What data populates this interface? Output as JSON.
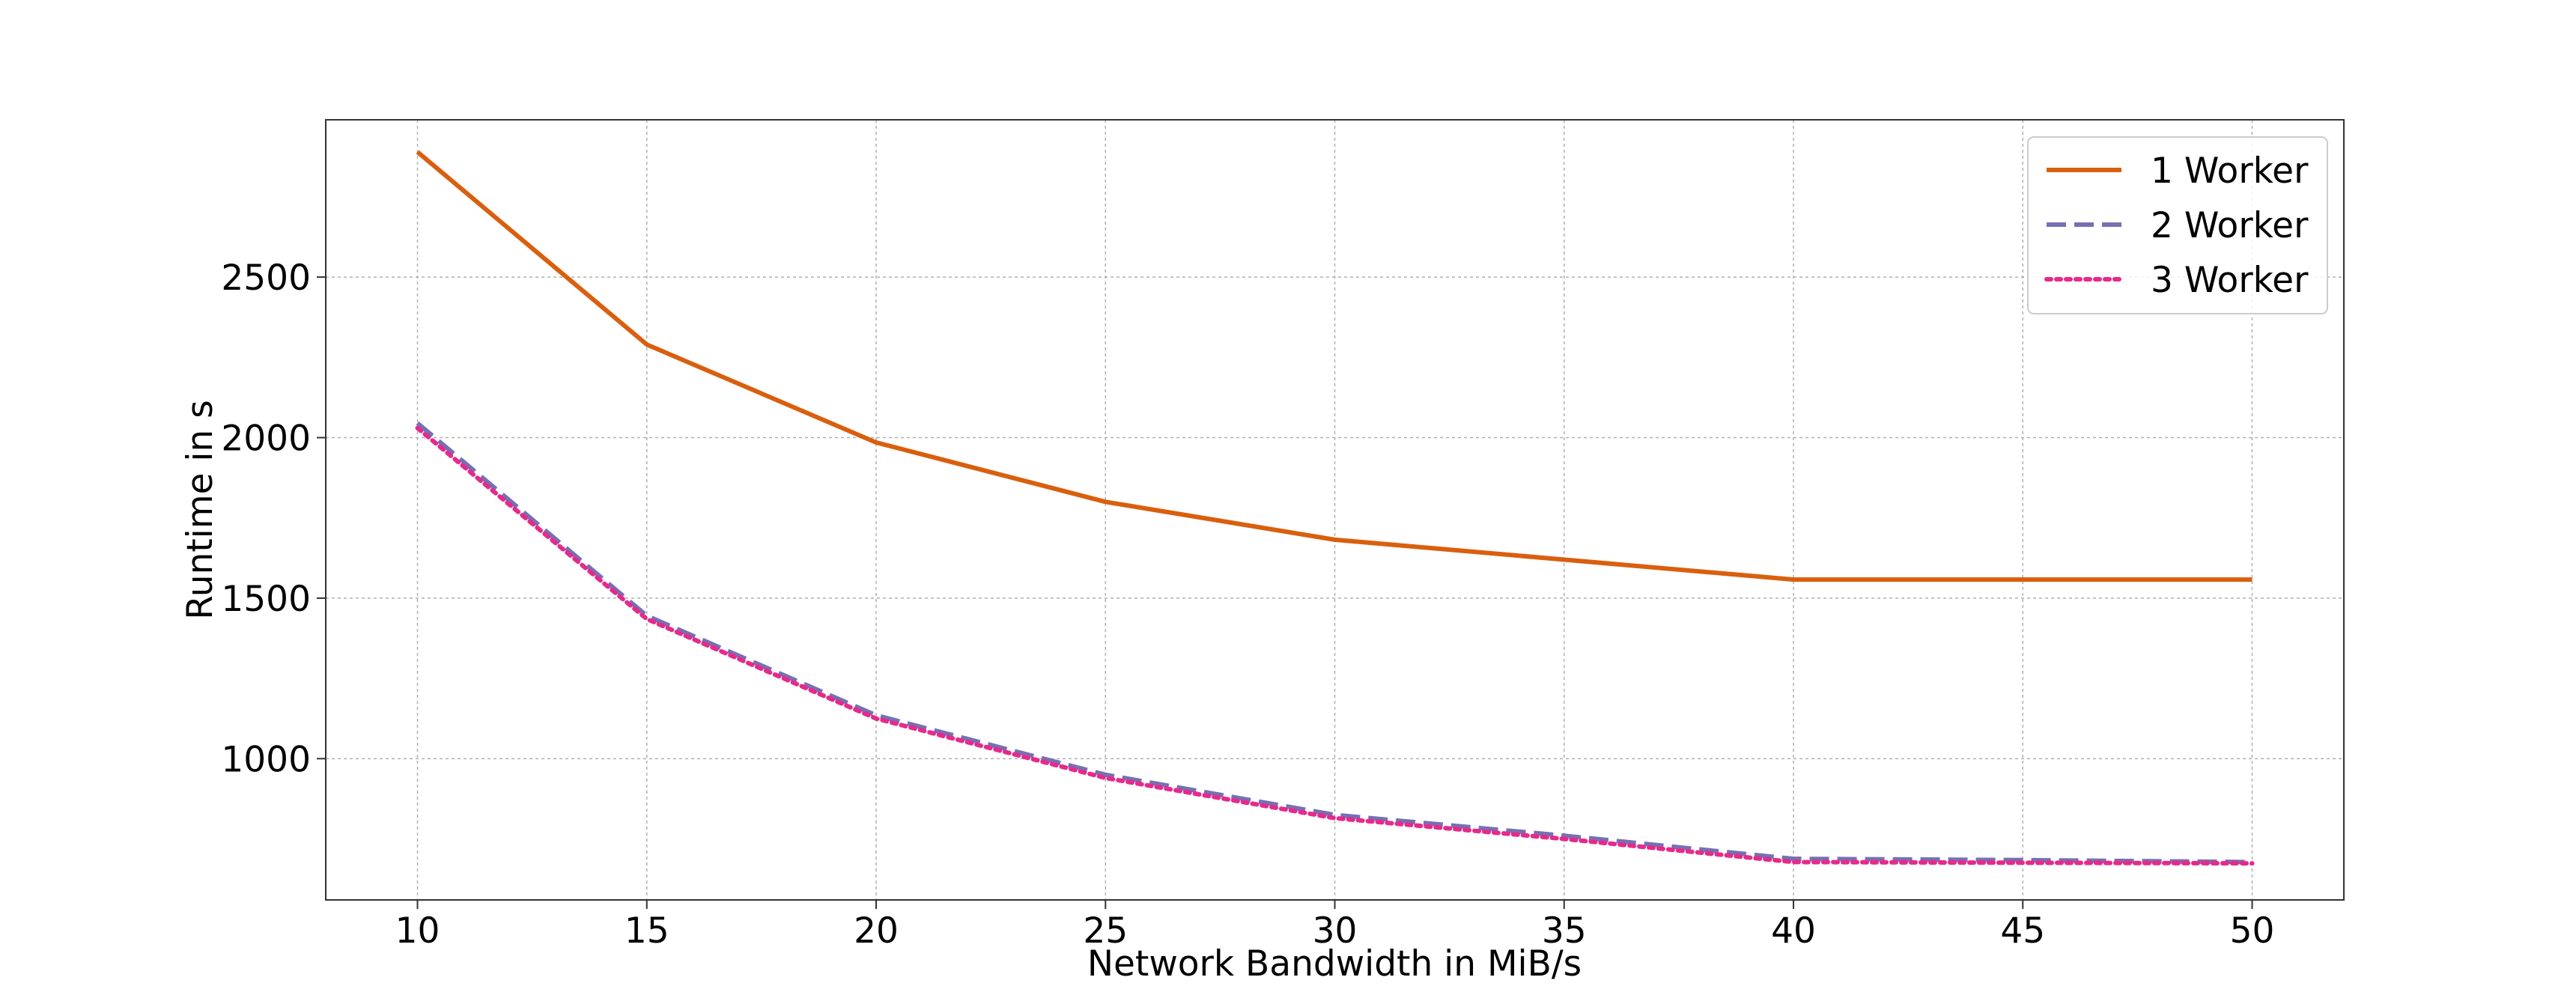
{
  "chart_data": {
    "type": "line",
    "title": "",
    "xlabel": "Network Bandwidth in MiB/s",
    "ylabel": "Runtime in s",
    "x": [
      10,
      15,
      20,
      25,
      30,
      35,
      40,
      45,
      50
    ],
    "xlim": [
      8,
      52
    ],
    "ylim": [
      560,
      2990
    ],
    "xticks": [
      10,
      15,
      20,
      25,
      30,
      35,
      40,
      45,
      50
    ],
    "yticks": [
      1000,
      1500,
      2000,
      2500
    ],
    "grid": true,
    "legend_position": "top-right",
    "series": [
      {
        "name": "1 Worker",
        "color": "#d95f0e",
        "style": "solid",
        "values": [
          2890,
          2290,
          1985,
          1800,
          1682,
          1620,
          1558,
          1558,
          1558
        ]
      },
      {
        "name": "2 Worker",
        "color": "#7570b3",
        "style": "dashed",
        "values": [
          2045,
          1445,
          1135,
          950,
          825,
          760,
          688,
          684,
          678
        ]
      },
      {
        "name": "3 Worker",
        "color": "#e7298a",
        "style": "dotted",
        "values": [
          2030,
          1435,
          1125,
          940,
          815,
          750,
          678,
          676,
          674
        ]
      }
    ]
  }
}
